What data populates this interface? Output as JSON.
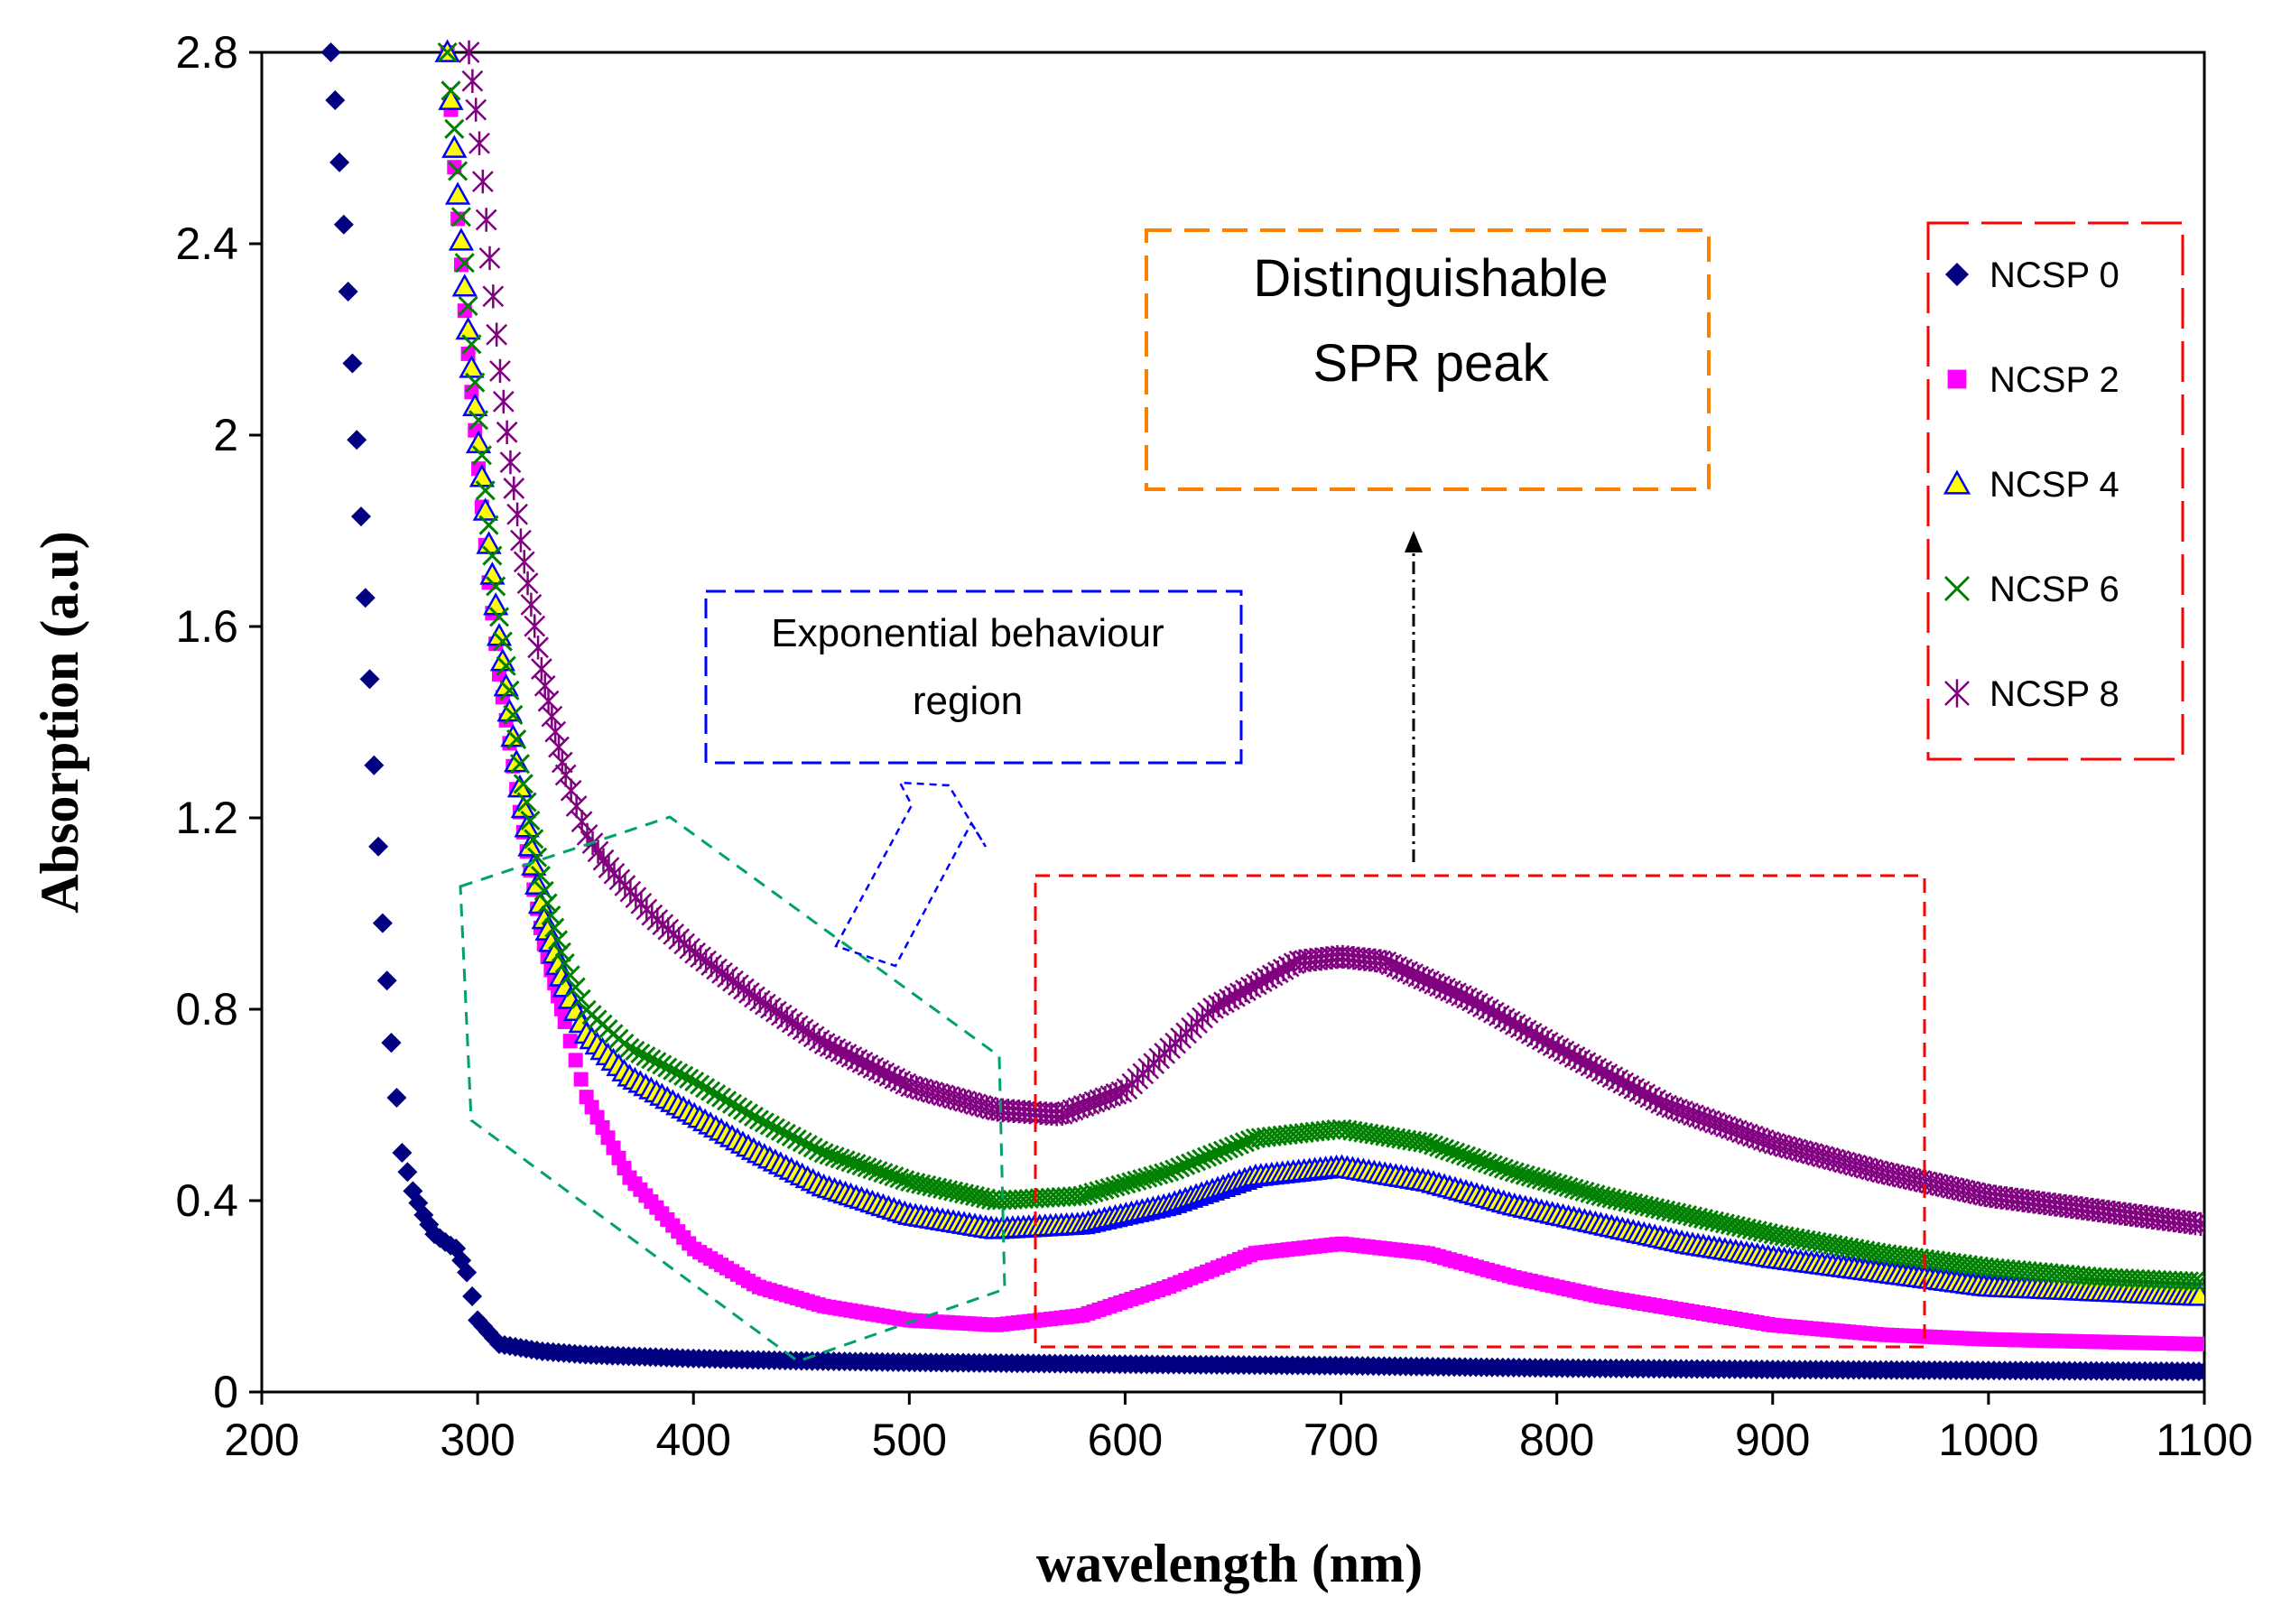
{
  "chart_data": {
    "type": "scatter",
    "xlabel": "wavelength (nm)",
    "ylabel": "Absorption (a.u)",
    "xlim": [
      200,
      1100
    ],
    "ylim": [
      0,
      2.8
    ],
    "x_ticks": [
      200,
      300,
      400,
      500,
      600,
      700,
      800,
      900,
      1000,
      1100
    ],
    "y_ticks": [
      0,
      0.4,
      0.8,
      1.2,
      1.6,
      2,
      2.4,
      2.8
    ],
    "x_tick_labels": [
      "200",
      "300",
      "400",
      "500",
      "600",
      "700",
      "800",
      "900",
      "1000",
      "1100"
    ],
    "y_tick_labels": [
      "0",
      "0.4",
      "0.8",
      "1.2",
      "1.6",
      "2",
      "2.4",
      "2.8"
    ],
    "legend_position": "right",
    "series": [
      {
        "name": "NCSP 0",
        "marker": "diamond",
        "color": "#000080",
        "x": [
          232,
          234,
          236,
          238,
          240,
          242,
          244,
          246,
          248,
          250,
          252,
          254,
          256,
          258,
          260,
          265,
          270,
          275,
          280,
          283,
          286,
          290,
          295,
          300,
          310,
          330,
          350,
          400,
          450,
          500,
          600,
          700,
          800,
          900,
          1000,
          1100
        ],
        "y": [
          2.8,
          2.7,
          2.57,
          2.44,
          2.3,
          2.15,
          1.99,
          1.83,
          1.66,
          1.49,
          1.31,
          1.14,
          0.98,
          0.86,
          0.73,
          0.5,
          0.42,
          0.37,
          0.33,
          0.32,
          0.31,
          0.3,
          0.25,
          0.15,
          0.1,
          0.085,
          0.078,
          0.07,
          0.065,
          0.062,
          0.058,
          0.055,
          0.05,
          0.047,
          0.045,
          0.043
        ]
      },
      {
        "name": "NCSP 2",
        "marker": "square",
        "color": "#ff00ff",
        "x": [
          286,
          290,
          295,
          300,
          305,
          310,
          320,
          330,
          340,
          350,
          370,
          400,
          430,
          460,
          500,
          540,
          580,
          620,
          660,
          700,
          740,
          780,
          820,
          860,
          900,
          950,
          1000,
          1050,
          1100
        ],
        "y": [
          2.8,
          2.5,
          2.2,
          1.95,
          1.7,
          1.5,
          1.2,
          0.95,
          0.78,
          0.62,
          0.45,
          0.3,
          0.22,
          0.18,
          0.15,
          0.14,
          0.16,
          0.22,
          0.29,
          0.31,
          0.29,
          0.24,
          0.2,
          0.17,
          0.14,
          0.12,
          0.11,
          0.105,
          0.1
        ]
      },
      {
        "name": "NCSP 4",
        "marker": "triangle",
        "color": "#0000ff",
        "fill": "#ffff00",
        "x": [
          286,
          290,
          295,
          300,
          305,
          310,
          320,
          330,
          340,
          350,
          370,
          400,
          430,
          460,
          500,
          540,
          580,
          620,
          660,
          700,
          740,
          780,
          820,
          860,
          900,
          950,
          1000,
          1050,
          1100
        ],
        "y": [
          2.8,
          2.55,
          2.25,
          2.0,
          1.78,
          1.58,
          1.25,
          1.0,
          0.85,
          0.75,
          0.66,
          0.58,
          0.5,
          0.43,
          0.37,
          0.34,
          0.35,
          0.39,
          0.45,
          0.47,
          0.44,
          0.39,
          0.35,
          0.31,
          0.28,
          0.25,
          0.22,
          0.21,
          0.2
        ]
      },
      {
        "name": "NCSP 6",
        "marker": "x",
        "color": "#008000",
        "x": [
          286,
          290,
          295,
          300,
          305,
          310,
          320,
          330,
          340,
          350,
          370,
          400,
          430,
          460,
          500,
          540,
          580,
          620,
          660,
          700,
          740,
          780,
          820,
          860,
          900,
          950,
          1000,
          1050,
          1100
        ],
        "y": [
          2.8,
          2.6,
          2.3,
          2.05,
          1.82,
          1.62,
          1.3,
          1.06,
          0.9,
          0.8,
          0.72,
          0.65,
          0.57,
          0.5,
          0.44,
          0.4,
          0.41,
          0.46,
          0.53,
          0.55,
          0.52,
          0.46,
          0.41,
          0.37,
          0.33,
          0.29,
          0.26,
          0.24,
          0.23
        ]
      },
      {
        "name": "NCSP 8",
        "marker": "asterisk",
        "color": "#800080",
        "x": [
          296,
          300,
          305,
          310,
          315,
          320,
          330,
          340,
          350,
          360,
          380,
          400,
          430,
          460,
          500,
          540,
          570,
          600,
          640,
          680,
          700,
          720,
          760,
          800,
          850,
          900,
          950,
          1000,
          1050,
          1100
        ],
        "y": [
          2.8,
          2.65,
          2.4,
          2.15,
          1.95,
          1.78,
          1.5,
          1.3,
          1.17,
          1.1,
          1.0,
          0.92,
          0.82,
          0.73,
          0.64,
          0.59,
          0.58,
          0.63,
          0.8,
          0.9,
          0.91,
          0.9,
          0.82,
          0.72,
          0.6,
          0.52,
          0.46,
          0.41,
          0.38,
          0.35
        ]
      }
    ],
    "annotations": [
      {
        "text_lines": [
          "Exponential behaviour",
          "region"
        ],
        "border_color": "#0000ff"
      },
      {
        "text_lines": [
          "Distinguishable",
          "SPR peak"
        ],
        "border_color": "#ff8000"
      }
    ]
  }
}
